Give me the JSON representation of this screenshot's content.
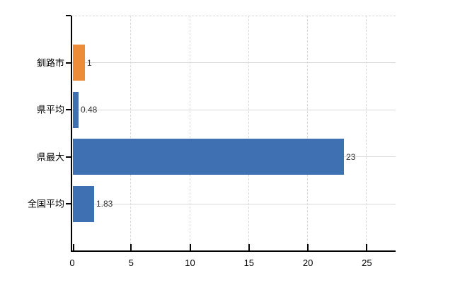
{
  "chart_data": {
    "type": "bar",
    "orientation": "horizontal",
    "categories": [
      "釧路市",
      "県平均",
      "県最大",
      "全国平均"
    ],
    "values": [
      1,
      0.48,
      23,
      1.83
    ],
    "value_labels": [
      "1",
      "0.48",
      "23",
      "1.83"
    ],
    "bar_colors": [
      "#ED8C38",
      "#3E70B2",
      "#3E70B2",
      "#3E70B2"
    ],
    "xlim": [
      0,
      27.5
    ],
    "xticks": [
      0,
      5,
      10,
      15,
      20,
      25
    ],
    "xtick_labels": [
      "0",
      "5",
      "10",
      "15",
      "20",
      "25"
    ],
    "grid": true,
    "legend": "none",
    "title": "",
    "xlabel": "",
    "ylabel": "",
    "colors": {
      "background": "#FFFFFF",
      "grid": "#D9D9D9",
      "axis": "#000000",
      "category_text": "#000000",
      "value_text": "#333333"
    }
  }
}
